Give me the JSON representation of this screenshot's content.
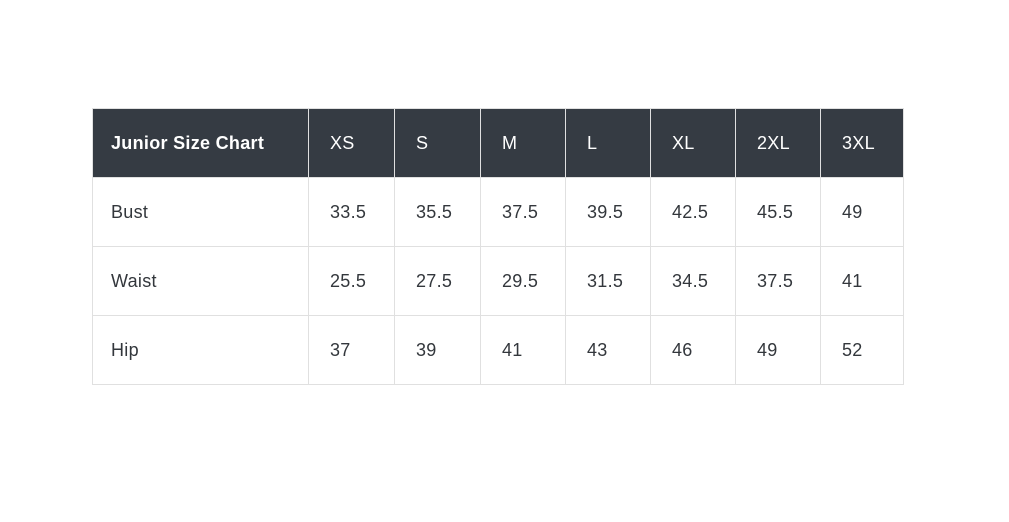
{
  "table": {
    "title": "Junior Size Chart",
    "columns": [
      "XS",
      "S",
      "M",
      "L",
      "XL",
      "2XL",
      "3XL"
    ],
    "rows": [
      {
        "label": "Bust",
        "values": [
          "33.5",
          "35.5",
          "37.5",
          "39.5",
          "42.5",
          "45.5",
          "49"
        ]
      },
      {
        "label": "Waist",
        "values": [
          "25.5",
          "27.5",
          "29.5",
          "31.5",
          "34.5",
          "37.5",
          "41"
        ]
      },
      {
        "label": "Hip",
        "values": [
          "37",
          "39",
          "41",
          "43",
          "46",
          "49",
          "52"
        ]
      }
    ],
    "colors": {
      "header_background": "#353b43",
      "header_text": "#ffffff",
      "body_text": "#33373c",
      "border": "#e0e0e0",
      "page_background": "#ffffff"
    }
  },
  "chart_data": {
    "type": "table",
    "title": "Junior Size Chart",
    "columns": [
      "Junior Size Chart",
      "XS",
      "S",
      "M",
      "L",
      "XL",
      "2XL",
      "3XL"
    ],
    "rows": [
      [
        "Bust",
        33.5,
        35.5,
        37.5,
        39.5,
        42.5,
        45.5,
        49
      ],
      [
        "Waist",
        25.5,
        27.5,
        29.5,
        31.5,
        34.5,
        37.5,
        41
      ],
      [
        "Hip",
        37,
        39,
        41,
        43,
        46,
        49,
        52
      ]
    ],
    "layout": {
      "header_row": true,
      "grid": true,
      "legend": "none"
    }
  }
}
